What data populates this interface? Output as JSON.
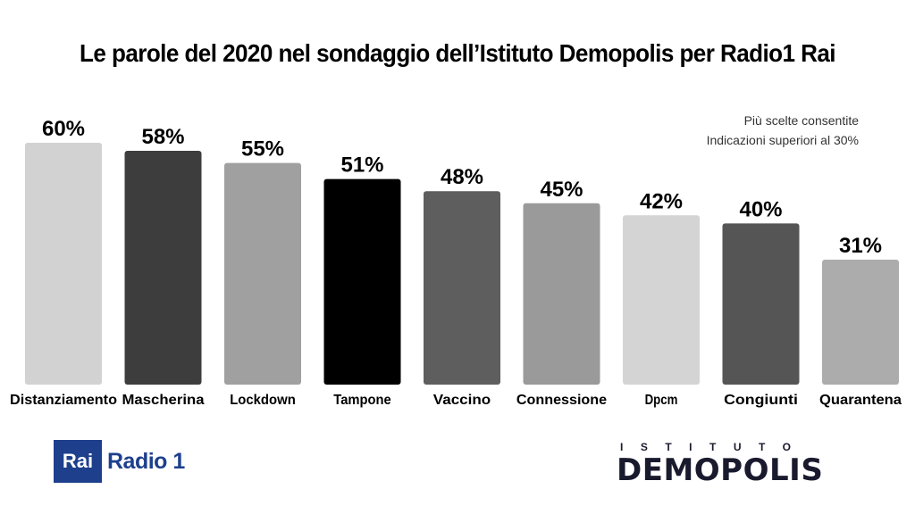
{
  "title": "Le parole del 2020 nel sondaggio dell’Istituto Demopolis per Radio1 Rai",
  "note": {
    "line1": "Più scelte consentite",
    "line2": "Indicazioni superiori al 30%"
  },
  "logos": {
    "rai_box": "Rai",
    "rai_radio": "Radio 1",
    "demopolis_top": "ISTITUTO",
    "demopolis_main": "DEMOPOLIS"
  },
  "chart_data": {
    "type": "bar",
    "categories": [
      "Distanziamento",
      "Mascherina",
      "Lockdown",
      "Tampone",
      "Vaccino",
      "Connessione",
      "Dpcm",
      "Congiunti",
      "Quarantena"
    ],
    "values": [
      60,
      58,
      55,
      51,
      48,
      45,
      42,
      40,
      31
    ],
    "value_labels": [
      "60%",
      "58%",
      "55%",
      "51%",
      "48%",
      "45%",
      "42%",
      "40%",
      "31%"
    ],
    "colors": [
      "#d2d2d2",
      "#3d3d3d",
      "#a0a0a0",
      "#000000",
      "#5e5e5e",
      "#9a9a9a",
      "#d4d4d4",
      "#555555",
      "#acacac"
    ],
    "ylim": [
      0,
      60
    ],
    "grid": false,
    "legend": "none"
  }
}
